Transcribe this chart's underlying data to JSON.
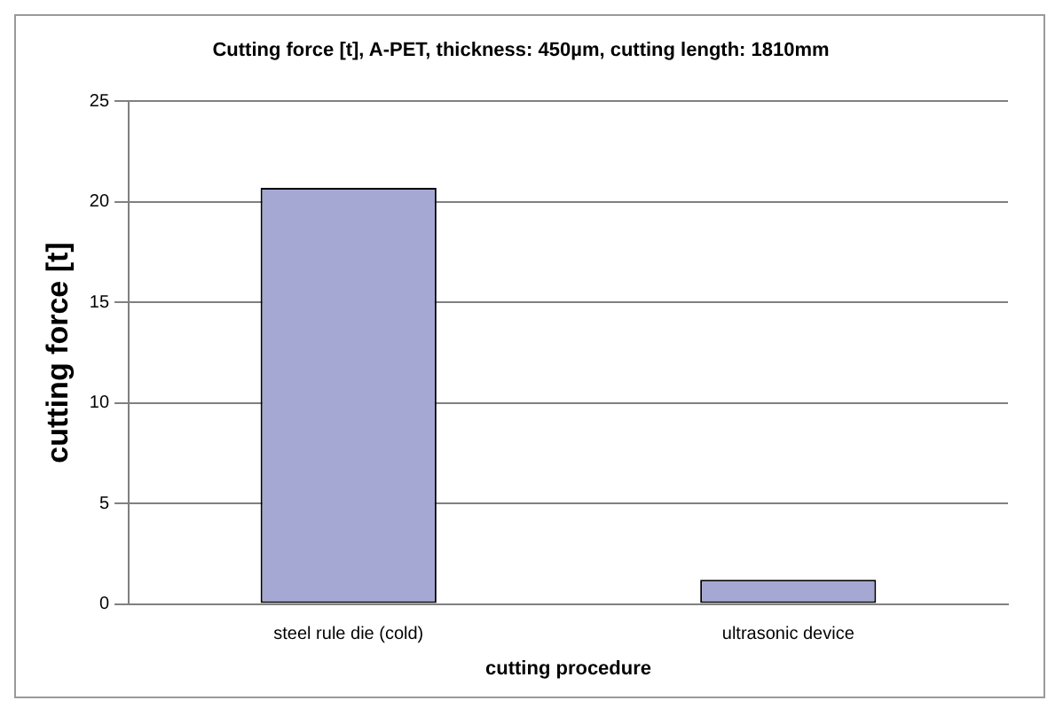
{
  "chart_data": {
    "type": "bar",
    "title": "Cutting force [t], A-PET, thickness: 450µm, cutting length: 1810mm",
    "xlabel": "cutting procedure",
    "ylabel": "cutting force [t]",
    "categories": [
      "steel rule die (cold)",
      "ultrasonic device"
    ],
    "values": [
      20.7,
      1.2
    ],
    "color": "#a6a8d4",
    "ylim": [
      0,
      25
    ],
    "yticks": [
      0,
      5,
      10,
      15,
      20,
      25
    ],
    "grid": "y"
  }
}
